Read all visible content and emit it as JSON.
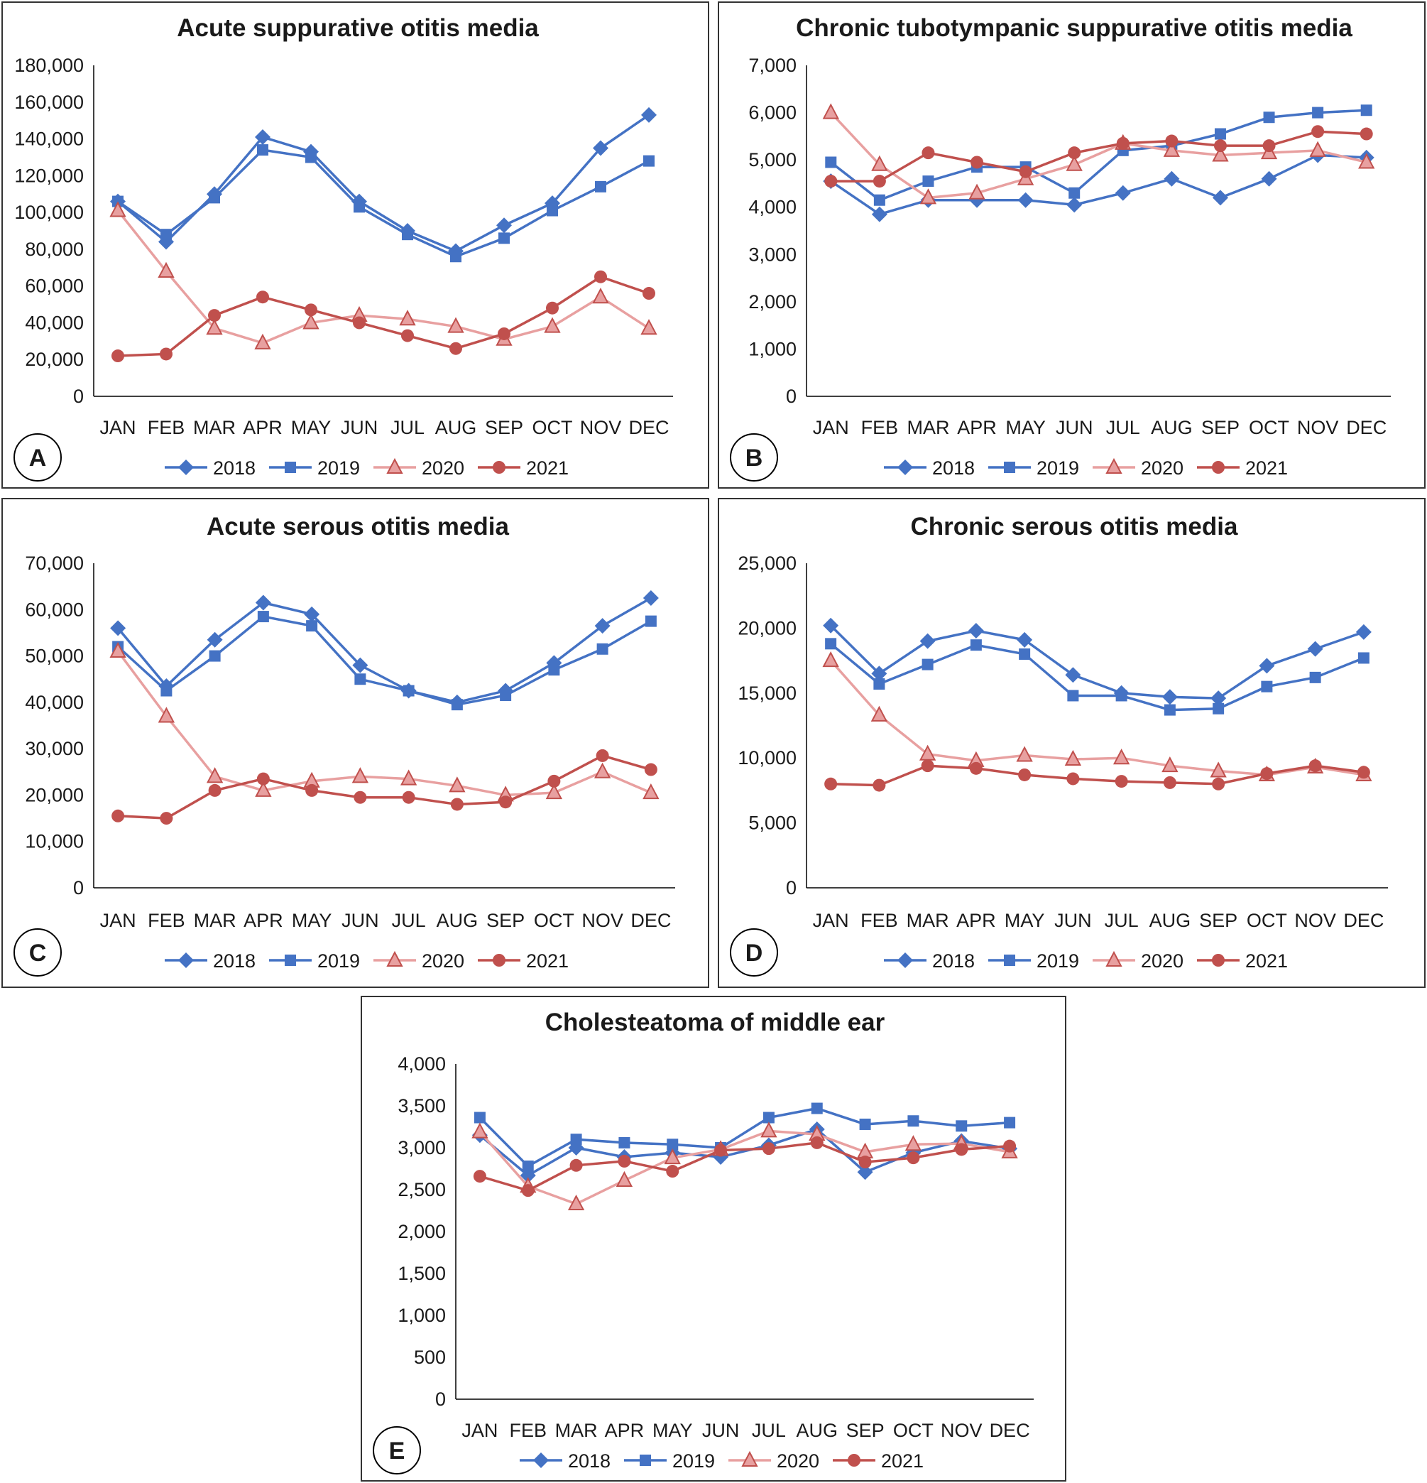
{
  "colors": {
    "s2018": "#4472C4",
    "s2019": "#4472C4",
    "s2020": "#E8A0A0",
    "s2021": "#C0504D",
    "marker2020": "#C0504D"
  },
  "legend": [
    "2018",
    "2019",
    "2020",
    "2021"
  ],
  "chart_data": [
    {
      "id": "A",
      "type": "line",
      "title": "Acute suppurative otitis media",
      "categories": [
        "JAN",
        "FEB",
        "MAR",
        "APR",
        "MAY",
        "JUN",
        "JUL",
        "AUG",
        "SEP",
        "OCT",
        "NOV",
        "DEC"
      ],
      "ylim": [
        0,
        180000
      ],
      "yticks": [
        "0",
        "20,000",
        "40,000",
        "60,000",
        "80,000",
        "100,000",
        "120,000",
        "140,000",
        "160,000",
        "180,000"
      ],
      "series": [
        {
          "name": "2018",
          "values": [
            106000,
            84000,
            110000,
            141000,
            133000,
            106000,
            90000,
            79000,
            93000,
            105000,
            135000,
            153000
          ]
        },
        {
          "name": "2019",
          "values": [
            106000,
            88000,
            108000,
            134000,
            130000,
            103000,
            88000,
            76000,
            86000,
            101000,
            114000,
            128000
          ]
        },
        {
          "name": "2020",
          "values": [
            101000,
            68000,
            37000,
            29000,
            40000,
            44000,
            42000,
            38000,
            31000,
            38000,
            54000,
            37000
          ]
        },
        {
          "name": "2021",
          "values": [
            22000,
            23000,
            44000,
            54000,
            47000,
            40000,
            33000,
            26000,
            34000,
            48000,
            65000,
            56000
          ]
        }
      ]
    },
    {
      "id": "B",
      "type": "line",
      "title": "Chronic tubotympanic suppurative otitis media",
      "categories": [
        "JAN",
        "FEB",
        "MAR",
        "APR",
        "MAY",
        "JUN",
        "JUL",
        "AUG",
        "SEP",
        "OCT",
        "NOV",
        "DEC"
      ],
      "ylim": [
        0,
        7000
      ],
      "yticks": [
        "0",
        "1,000",
        "2,000",
        "3,000",
        "4,000",
        "5,000",
        "6,000",
        "7,000"
      ],
      "series": [
        {
          "name": "2018",
          "values": [
            4550,
            3850,
            4150,
            4150,
            4150,
            4050,
            4300,
            4600,
            4200,
            4600,
            5100,
            5050
          ]
        },
        {
          "name": "2019",
          "values": [
            4950,
            4150,
            4550,
            4850,
            4850,
            4300,
            5200,
            5300,
            5550,
            5900,
            6000,
            6050
          ]
        },
        {
          "name": "2020",
          "values": [
            6000,
            4900,
            4200,
            4300,
            4600,
            4900,
            5350,
            5200,
            5100,
            5150,
            5200,
            4950
          ]
        },
        {
          "name": "2021",
          "values": [
            4550,
            4550,
            5150,
            4950,
            4750,
            5150,
            5350,
            5400,
            5300,
            5300,
            5600,
            5550
          ]
        }
      ]
    },
    {
      "id": "C",
      "type": "line",
      "title": "Acute serous otitis media",
      "categories": [
        "JAN",
        "FEB",
        "MAR",
        "APR",
        "MAY",
        "JUN",
        "JUL",
        "AUG",
        "SEP",
        "OCT",
        "NOV",
        "DEC"
      ],
      "ylim": [
        0,
        70000
      ],
      "yticks": [
        "0",
        "10,000",
        "20,000",
        "30,000",
        "40,000",
        "50,000",
        "60,000",
        "70,000"
      ],
      "series": [
        {
          "name": "2018",
          "values": [
            56000,
            43500,
            53500,
            61500,
            59000,
            48000,
            42500,
            40000,
            42500,
            48500,
            56500,
            62500
          ]
        },
        {
          "name": "2019",
          "values": [
            52000,
            42500,
            50000,
            58500,
            56500,
            45000,
            42500,
            39500,
            41500,
            47000,
            51500,
            57500
          ]
        },
        {
          "name": "2020",
          "values": [
            51000,
            37000,
            24000,
            21000,
            23000,
            24000,
            23500,
            22000,
            20000,
            20500,
            25000,
            20500
          ]
        },
        {
          "name": "2021",
          "values": [
            15500,
            15000,
            21000,
            23500,
            21000,
            19500,
            19500,
            18000,
            18500,
            23000,
            28500,
            25500
          ]
        }
      ]
    },
    {
      "id": "D",
      "type": "line",
      "title": "Chronic serous otitis media",
      "categories": [
        "JAN",
        "FEB",
        "MAR",
        "APR",
        "MAY",
        "JUN",
        "JUL",
        "AUG",
        "SEP",
        "OCT",
        "NOV",
        "DEC"
      ],
      "ylim": [
        0,
        25000
      ],
      "yticks": [
        "0",
        "5,000",
        "10,000",
        "15,000",
        "20,000",
        "25,000"
      ],
      "series": [
        {
          "name": "2018",
          "values": [
            20200,
            16500,
            19000,
            19800,
            19100,
            16400,
            15000,
            14700,
            14600,
            17100,
            18400,
            19700
          ]
        },
        {
          "name": "2019",
          "values": [
            18800,
            15700,
            17200,
            18700,
            18000,
            14800,
            14800,
            13700,
            13800,
            15500,
            16200,
            17700
          ]
        },
        {
          "name": "2020",
          "values": [
            17500,
            13300,
            10300,
            9800,
            10200,
            9900,
            10000,
            9400,
            9000,
            8700,
            9300,
            8700
          ]
        },
        {
          "name": "2021",
          "values": [
            8000,
            7900,
            9400,
            9200,
            8700,
            8400,
            8200,
            8100,
            8000,
            8800,
            9400,
            8900
          ]
        }
      ]
    },
    {
      "id": "E",
      "type": "line",
      "title": "Cholesteatoma of middle ear",
      "categories": [
        "JAN",
        "FEB",
        "MAR",
        "APR",
        "MAY",
        "JUN",
        "JUL",
        "AUG",
        "SEP",
        "OCT",
        "NOV",
        "DEC"
      ],
      "ylim": [
        0,
        4000
      ],
      "yticks": [
        "0",
        "500",
        "1,000",
        "1,500",
        "2,000",
        "2,500",
        "3,000",
        "3,500",
        "4,000"
      ],
      "series": [
        {
          "name": "2018",
          "values": [
            3150,
            2670,
            3000,
            2890,
            2940,
            2890,
            3030,
            3220,
            2710,
            2940,
            3080,
            2990
          ]
        },
        {
          "name": "2019",
          "values": [
            3360,
            2780,
            3100,
            3060,
            3040,
            3000,
            3360,
            3470,
            3280,
            3320,
            3260,
            3300
          ]
        },
        {
          "name": "2020",
          "values": [
            3190,
            2540,
            2330,
            2610,
            2880,
            2980,
            3200,
            3160,
            2950,
            3040,
            3050,
            2950
          ]
        },
        {
          "name": "2021",
          "values": [
            2660,
            2490,
            2790,
            2840,
            2720,
            2970,
            2990,
            3060,
            2830,
            2880,
            2980,
            3020
          ]
        }
      ]
    }
  ]
}
